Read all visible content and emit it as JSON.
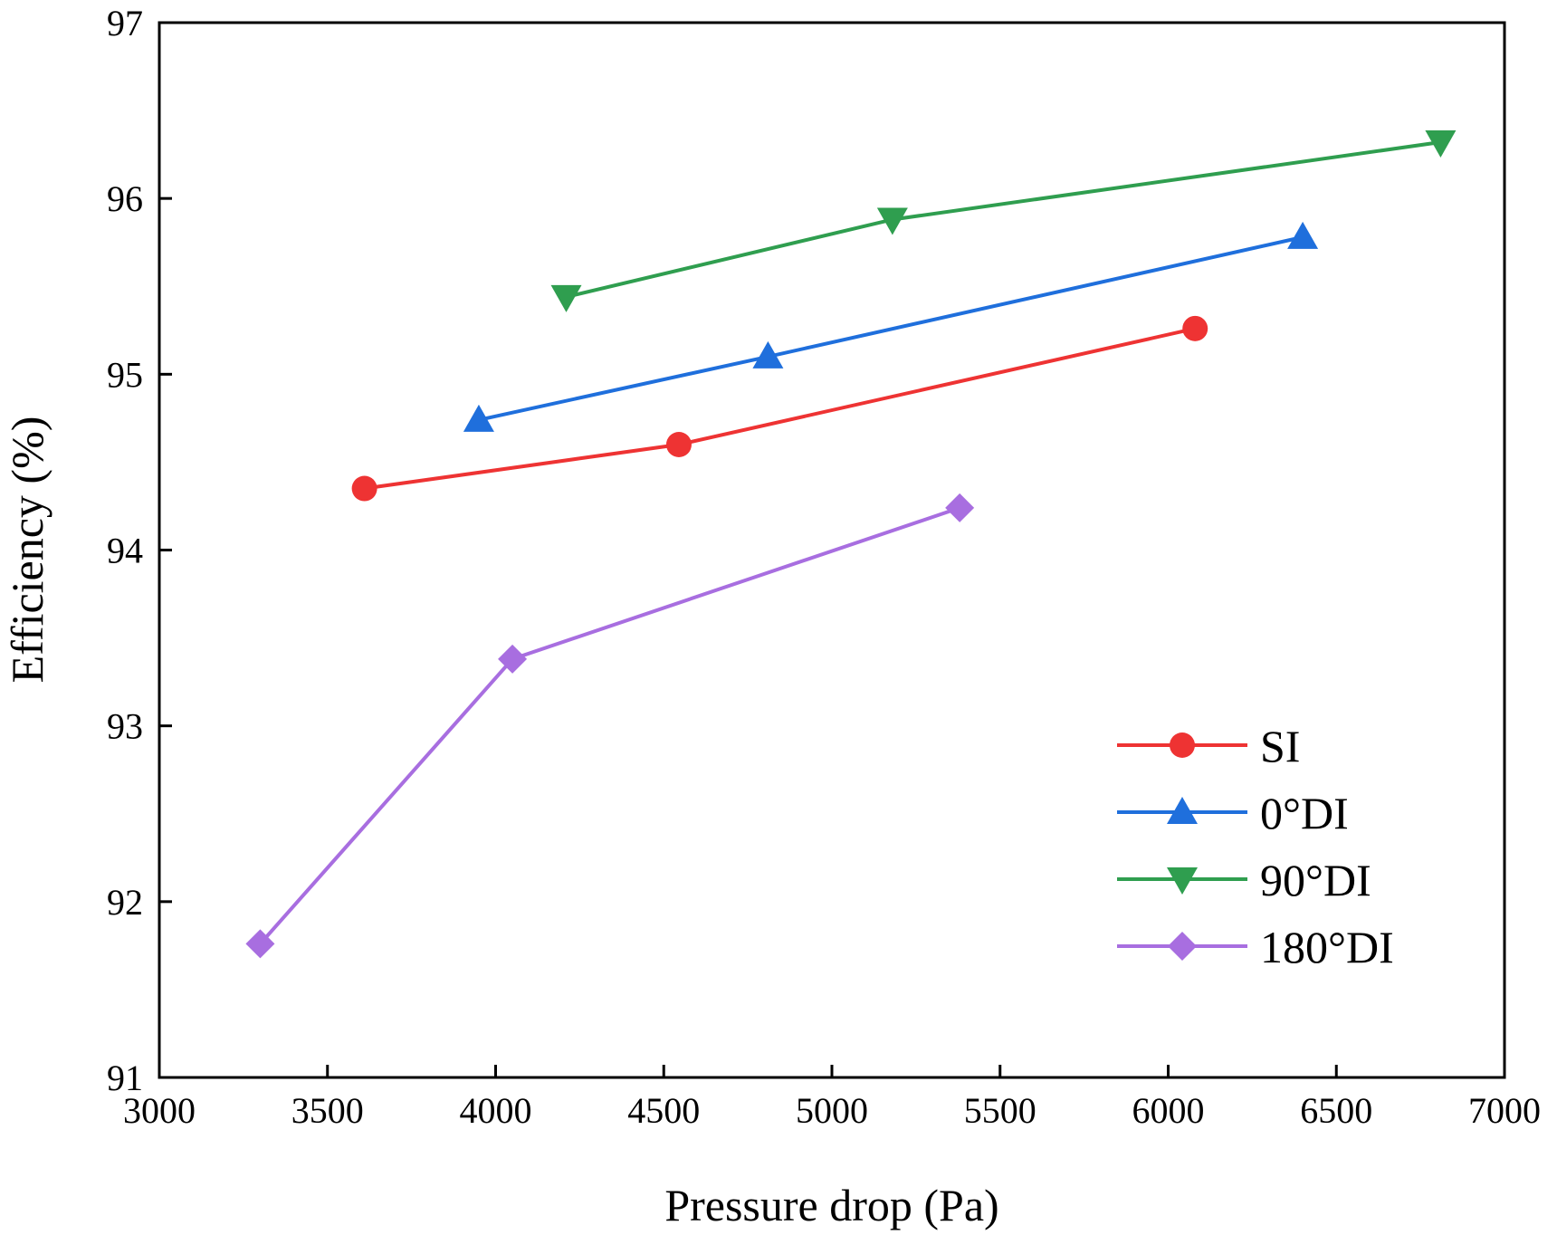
{
  "chart_data": {
    "type": "line",
    "title": "",
    "xlabel": "Pressure drop (Pa)",
    "ylabel": "Efficiency (%)",
    "xlim": [
      3000,
      7000
    ],
    "ylim": [
      91,
      97
    ],
    "xticks": [
      3000,
      3500,
      4000,
      4500,
      5000,
      5500,
      6000,
      6500,
      7000
    ],
    "yticks": [
      91,
      92,
      93,
      94,
      95,
      96,
      97
    ],
    "grid": false,
    "legend_position": "bottom-right",
    "series": [
      {
        "name": "SI",
        "color": "#ee3333",
        "marker": "circle",
        "x": [
          3610,
          4545,
          6080
        ],
        "y": [
          94.35,
          94.6,
          95.26
        ]
      },
      {
        "name": "0°DI",
        "color": "#1f6fdc",
        "marker": "triangle-up",
        "x": [
          3950,
          4810,
          6400
        ],
        "y": [
          94.74,
          95.1,
          95.78
        ]
      },
      {
        "name": "90°DI",
        "color": "#2f9e4f",
        "marker": "triangle-down",
        "x": [
          4210,
          5180,
          6810
        ],
        "y": [
          95.44,
          95.88,
          96.32
        ]
      },
      {
        "name": "180°DI",
        "color": "#a86ee0",
        "marker": "diamond",
        "x": [
          3300,
          4050,
          5380
        ],
        "y": [
          91.76,
          93.38,
          94.24
        ]
      }
    ]
  }
}
